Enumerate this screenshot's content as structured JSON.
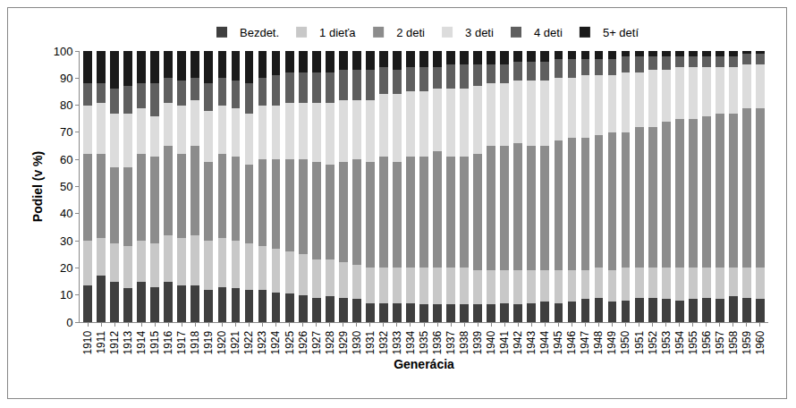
{
  "chart_data": {
    "type": "bar",
    "stacked": true,
    "legend": "top",
    "grid": false,
    "x_label": "Generácia",
    "y_label": "Podiel (v %)",
    "ylim": [
      0,
      100
    ],
    "yticks": [
      0,
      10,
      20,
      30,
      40,
      50,
      60,
      70,
      80,
      90,
      100
    ],
    "categories": [
      "1910",
      "1911",
      "1912",
      "1913",
      "1914",
      "1915",
      "1916",
      "1917",
      "1918",
      "1919",
      "1920",
      "1921",
      "1922",
      "1923",
      "1924",
      "1925",
      "1926",
      "1927",
      "1928",
      "1929",
      "1930",
      "1931",
      "1932",
      "1933",
      "1934",
      "1935",
      "1936",
      "1937",
      "1938",
      "1939",
      "1940",
      "1941",
      "1942",
      "1943",
      "1944",
      "1945",
      "1946",
      "1947",
      "1948",
      "1949",
      "1950",
      "1951",
      "1952",
      "1953",
      "1954",
      "1955",
      "1956",
      "1957",
      "1958",
      "1959",
      "1960"
    ],
    "series": [
      {
        "name": "Bezdet.",
        "color": "#3f3f3f",
        "values": [
          13.5,
          17,
          15,
          12.5,
          15,
          13,
          15,
          13.5,
          13.5,
          12,
          13,
          12.5,
          12,
          12,
          11,
          10.5,
          10,
          9,
          9.5,
          9,
          8.5,
          7,
          7,
          7,
          7,
          6.5,
          6.5,
          6.5,
          6.5,
          6.5,
          6.5,
          7,
          6.5,
          7,
          7.5,
          7,
          7.5,
          8.5,
          9,
          7.5,
          8,
          9,
          9,
          8.5,
          8,
          8.5,
          9,
          8.5,
          9.5,
          9,
          8.5
        ]
      },
      {
        "name": "1 dieťa",
        "color": "#c8c8c8",
        "values": [
          16.5,
          14,
          14,
          15.5,
          15,
          16,
          17,
          17.5,
          18.5,
          18,
          18,
          17.5,
          17,
          16,
          16,
          15.5,
          15,
          14,
          13.5,
          13,
          12.5,
          13,
          13,
          13,
          13,
          13.5,
          13.5,
          13.5,
          13.5,
          12.5,
          12.5,
          12,
          12.5,
          12,
          11.5,
          12,
          11.5,
          10.5,
          11,
          11.5,
          12,
          11,
          11,
          11.5,
          12,
          11.5,
          11,
          11.5,
          10.5,
          11,
          11.5
        ]
      },
      {
        "name": "2 deti",
        "color": "#8c8c8c",
        "values": [
          32,
          31,
          28,
          29,
          32,
          32,
          33,
          31,
          33,
          29,
          31,
          31,
          29,
          32,
          33,
          34,
          35,
          36,
          35,
          37,
          39,
          39,
          41,
          39,
          41,
          41,
          43,
          41,
          41,
          43,
          46,
          46,
          47,
          46,
          46,
          48,
          49,
          49,
          49,
          51,
          50,
          52,
          52,
          54,
          55,
          55,
          56,
          57,
          57,
          59,
          59
        ]
      },
      {
        "name": "3 deti",
        "color": "#dcdcdc",
        "values": [
          18,
          19,
          20,
          20,
          17,
          15,
          16,
          18,
          17,
          19,
          18,
          18,
          19,
          20,
          20,
          21,
          21,
          22,
          23,
          23,
          22,
          23,
          23,
          25,
          24,
          24,
          23,
          25,
          25,
          25,
          23,
          23,
          23,
          24,
          24,
          23,
          22,
          23,
          22,
          21,
          22,
          20,
          21,
          19,
          19,
          19,
          18,
          17,
          17,
          16,
          16
        ]
      },
      {
        "name": "4 deti",
        "color": "#5f5f5f",
        "values": [
          8,
          7,
          9,
          10,
          9,
          12,
          9,
          9,
          8,
          10,
          10,
          10,
          11,
          10,
          11,
          11,
          11,
          11,
          11,
          11,
          11,
          11,
          10,
          9,
          9,
          9,
          8,
          9,
          9,
          8,
          7,
          7,
          7,
          7,
          7,
          7,
          7,
          6,
          6,
          6,
          6,
          6,
          5,
          5,
          4,
          4,
          4,
          4,
          4,
          4,
          4
        ]
      },
      {
        "name": "5+ detí",
        "color": "#1a1a1a",
        "values": [
          12,
          12,
          14,
          13,
          12,
          12,
          10,
          11,
          10,
          12,
          10,
          11,
          12,
          10,
          9,
          8,
          8,
          8,
          8,
          7,
          7,
          7,
          6,
          7,
          6,
          6,
          6,
          5,
          5,
          5,
          5,
          5,
          4,
          4,
          4,
          3,
          3,
          3,
          3,
          3,
          2,
          2,
          2,
          2,
          2,
          2,
          2,
          2,
          2,
          1,
          1
        ]
      }
    ]
  }
}
